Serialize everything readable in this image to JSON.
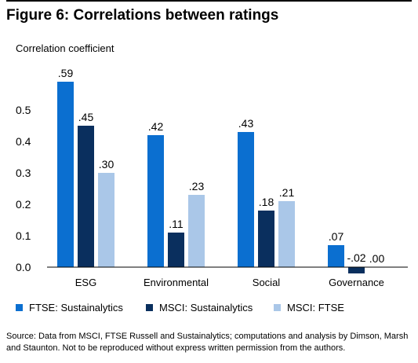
{
  "figure": {
    "title": "Figure 6: Correlations between ratings",
    "source": "Source: Data from MSCI, FTSE Russell and Sustainalytics; computations and analysis by Dimson, Marsh and Staunton.  Not to be reproduced without express written permission from the authors."
  },
  "chart_data": {
    "type": "bar",
    "ylabel": "Correlation coefficient",
    "ylim": [
      0,
      0.6
    ],
    "yticks": [
      "0.0",
      "0.1",
      "0.2",
      "0.3",
      "0.4",
      "0.5"
    ],
    "categories": [
      "ESG",
      "Environmental",
      "Social",
      "Governance"
    ],
    "series": [
      {
        "name": "FTSE: Sustainalytics",
        "color": "#0b6fd0",
        "values": [
          0.59,
          0.42,
          0.43,
          0.07
        ],
        "labels": [
          ".59",
          ".42",
          ".43",
          ".07"
        ]
      },
      {
        "name": "MSCI: Sustainalytics",
        "color": "#0a2f5e",
        "values": [
          0.45,
          0.11,
          0.18,
          -0.02
        ],
        "labels": [
          ".45",
          ".11",
          ".18",
          "-.02"
        ]
      },
      {
        "name": "MSCI: FTSE",
        "color": "#aac7e8",
        "values": [
          0.3,
          0.23,
          0.21,
          0.0
        ],
        "labels": [
          ".30",
          ".23",
          ".21",
          ".00"
        ]
      }
    ],
    "legend_position": "bottom",
    "grid": false
  }
}
